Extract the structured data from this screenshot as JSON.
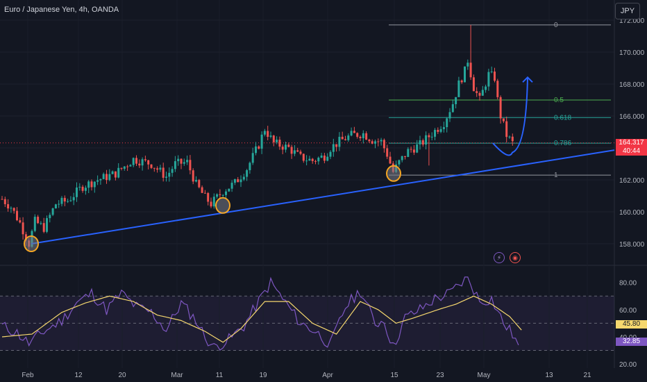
{
  "header": {
    "symbol_title": "Euro / Japanese Yen, 4h, OANDA",
    "currency_button": "JPY"
  },
  "price_scale": {
    "labels": [
      "172.000",
      "170.000",
      "168.000",
      "166.000",
      "164.000",
      "162.000",
      "160.000",
      "158.000"
    ],
    "current_price": "164.317",
    "countdown": "40:44"
  },
  "rsi_scale": {
    "labels": [
      "80.00",
      "60.00",
      "40.00",
      "20.00"
    ],
    "ma_value": "45.80",
    "rsi_value": "32.85"
  },
  "time_axis": {
    "labels": [
      "Feb",
      "12",
      "20",
      "Mar",
      "11",
      "19",
      "Apr",
      "15",
      "23",
      "May",
      "13",
      "21"
    ]
  },
  "fibonacci": {
    "levels": [
      {
        "label": "0",
        "price": 171.7
      },
      {
        "label": "0.5",
        "price": 167.0
      },
      {
        "label": "0.618",
        "price": 165.9
      },
      {
        "label": "0.786",
        "price": 164.3
      },
      {
        "label": "1",
        "price": 162.3
      }
    ]
  },
  "colors": {
    "background": "#131722",
    "up": "#26a69a",
    "down": "#ef5350",
    "trendline": "#2962ff",
    "rsi": "#7e57c2",
    "rsi_ma": "#f5d76e",
    "marker": "#f5a623"
  },
  "chart_data": {
    "type": "candlestick",
    "title": "Euro / Japanese Yen, 4h, OANDA",
    "ylim": [
      157.3,
      172.2
    ],
    "x_ticks": [
      "Feb",
      "12",
      "20",
      "Mar",
      "11",
      "19",
      "Apr",
      "15",
      "23",
      "May",
      "13",
      "21"
    ],
    "price_path": [
      [
        0,
        160.8
      ],
      [
        3,
        160.3
      ],
      [
        6,
        159.3
      ],
      [
        9,
        158.0
      ],
      [
        11,
        159.4
      ],
      [
        14,
        159.0
      ],
      [
        18,
        160.5
      ],
      [
        22,
        160.7
      ],
      [
        27,
        161.6
      ],
      [
        32,
        162.0
      ],
      [
        38,
        162.4
      ],
      [
        44,
        163.3
      ],
      [
        50,
        163.0
      ],
      [
        55,
        162.2
      ],
      [
        58,
        163.0
      ],
      [
        62,
        163.1
      ],
      [
        65,
        161.7
      ],
      [
        68,
        160.9
      ],
      [
        70,
        160.5
      ],
      [
        74,
        161.3
      ],
      [
        78,
        161.8
      ],
      [
        82,
        162.7
      ],
      [
        86,
        164.2
      ],
      [
        88,
        165.2
      ],
      [
        91,
        164.3
      ],
      [
        96,
        164.0
      ],
      [
        100,
        163.4
      ],
      [
        104,
        163.2
      ],
      [
        108,
        163.5
      ],
      [
        110,
        164.0
      ],
      [
        113,
        164.4
      ],
      [
        117,
        164.8
      ],
      [
        121,
        164.9
      ],
      [
        124,
        164.5
      ],
      [
        127,
        164.4
      ],
      [
        129,
        163.6
      ],
      [
        131,
        162.5
      ],
      [
        133,
        163.1
      ],
      [
        136,
        163.8
      ],
      [
        140,
        164.2
      ],
      [
        144,
        164.9
      ],
      [
        148,
        165.6
      ],
      [
        151,
        166.8
      ],
      [
        153,
        168.0
      ],
      [
        155,
        168.8
      ],
      [
        156,
        169.5
      ],
      [
        158,
        167.8
      ],
      [
        160,
        167.0
      ],
      [
        163,
        168.6
      ],
      [
        165,
        168.4
      ],
      [
        166,
        167.0
      ],
      [
        167,
        166.0
      ],
      [
        169,
        164.8
      ],
      [
        171,
        164.3
      ]
    ],
    "high_spike": {
      "x": 157,
      "price": 171.7
    },
    "wick_low": {
      "x": 143,
      "price": 162.9
    },
    "trendline": [
      [
        9,
        158.0
      ],
      [
        186,
        164.3
      ]
    ],
    "swing_lows": [
      {
        "x": 9,
        "price": 158.0
      },
      {
        "x": 71,
        "price": 160.4
      },
      {
        "x": 131,
        "price": 162.4
      }
    ],
    "projection": {
      "from": [
        171,
        164.3
      ],
      "trough": [
        174,
        163.8
      ],
      "to": [
        179,
        167.9
      ]
    },
    "rsi": {
      "ylim": [
        18,
        86
      ],
      "overbought": 70,
      "middle": 50,
      "oversold": 30,
      "values_path": [
        [
          0,
          48
        ],
        [
          5,
          43
        ],
        [
          9,
          35
        ],
        [
          14,
          44
        ],
        [
          20,
          52
        ],
        [
          25,
          65
        ],
        [
          30,
          72
        ],
        [
          35,
          60
        ],
        [
          40,
          72
        ],
        [
          45,
          62
        ],
        [
          50,
          58
        ],
        [
          55,
          45
        ],
        [
          60,
          65
        ],
        [
          65,
          52
        ],
        [
          68,
          40
        ],
        [
          71,
          32
        ],
        [
          76,
          38
        ],
        [
          81,
          48
        ],
        [
          86,
          66
        ],
        [
          90,
          80
        ],
        [
          95,
          65
        ],
        [
          100,
          50
        ],
        [
          105,
          44
        ],
        [
          110,
          34
        ],
        [
          115,
          62
        ],
        [
          120,
          74
        ],
        [
          125,
          50
        ],
        [
          128,
          52
        ],
        [
          131,
          32
        ],
        [
          135,
          54
        ],
        [
          140,
          60
        ],
        [
          145,
          68
        ],
        [
          150,
          72
        ],
        [
          156,
          84
        ],
        [
          160,
          66
        ],
        [
          164,
          68
        ],
        [
          168,
          50
        ],
        [
          171,
          42
        ],
        [
          173,
          33
        ]
      ],
      "ma_path": [
        [
          0,
          40
        ],
        [
          10,
          42
        ],
        [
          20,
          58
        ],
        [
          28,
          65
        ],
        [
          36,
          70
        ],
        [
          44,
          66
        ],
        [
          52,
          56
        ],
        [
          60,
          52
        ],
        [
          68,
          44
        ],
        [
          74,
          36
        ],
        [
          80,
          46
        ],
        [
          88,
          66
        ],
        [
          96,
          66
        ],
        [
          104,
          50
        ],
        [
          112,
          42
        ],
        [
          120,
          66
        ],
        [
          126,
          60
        ],
        [
          132,
          50
        ],
        [
          138,
          54
        ],
        [
          146,
          60
        ],
        [
          152,
          64
        ],
        [
          158,
          70
        ],
        [
          164,
          64
        ],
        [
          170,
          55
        ],
        [
          174,
          45
        ]
      ]
    }
  }
}
